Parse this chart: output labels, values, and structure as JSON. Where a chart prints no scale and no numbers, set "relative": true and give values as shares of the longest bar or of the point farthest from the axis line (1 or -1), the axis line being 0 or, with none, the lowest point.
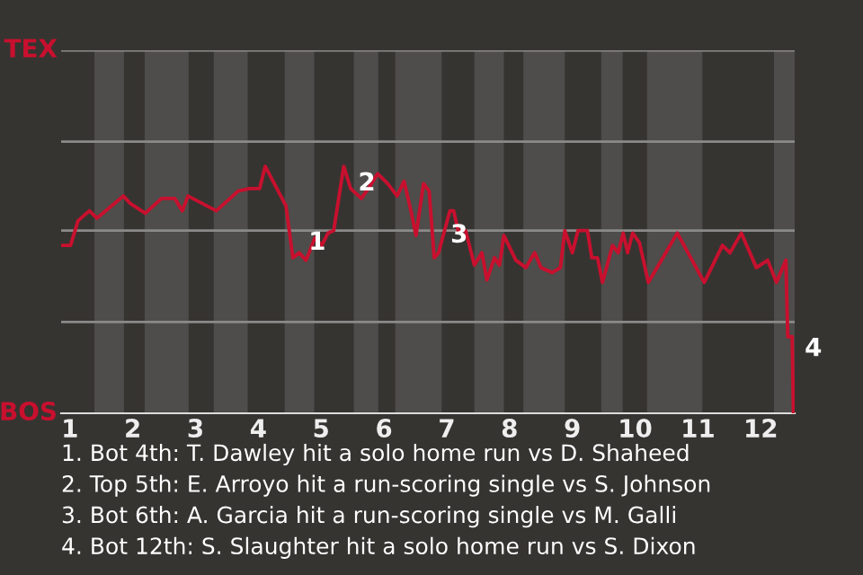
{
  "chart_data": {
    "type": "line",
    "relative": true,
    "xlim": [
      0.86,
      12.54
    ],
    "xticks": [
      1,
      2,
      3,
      4,
      5,
      6,
      7,
      8,
      9,
      10,
      11,
      12
    ],
    "marker": "none",
    "line_style": "solid",
    "series": [
      {
        "color": "#c8102e",
        "x": [
          0.86,
          1.01,
          1.13,
          1.31,
          1.43,
          1.85,
          1.96,
          2.2,
          2.46,
          2.67,
          2.79,
          2.88,
          3.33,
          3.68,
          3.86,
          4.02,
          4.11,
          4.44,
          4.55,
          4.65,
          4.76,
          4.9,
          5.01,
          5.11,
          5.2,
          5.36,
          5.47,
          5.64,
          5.75,
          5.9,
          6.06,
          6.21,
          6.32,
          6.43,
          6.51,
          6.63,
          6.72,
          6.8,
          6.87,
          7.05,
          7.11,
          7.18,
          7.3,
          7.44,
          7.56,
          7.64,
          7.76,
          7.84,
          7.91,
          8.1,
          8.26,
          8.4,
          8.5,
          8.68,
          8.81,
          8.88,
          9.0,
          9.09,
          9.24,
          9.31,
          9.4,
          9.48,
          9.64,
          9.73,
          9.81,
          9.88,
          9.96,
          10.07,
          10.21,
          10.42,
          10.67,
          11.1,
          11.39,
          11.51,
          11.69,
          11.93,
          12.11,
          12.25,
          12.4,
          12.43,
          12.5,
          12.52
        ],
        "values": [
          0.68,
          0.68,
          0.78,
          0.82,
          0.79,
          0.88,
          0.85,
          0.81,
          0.87,
          0.87,
          0.82,
          0.88,
          0.82,
          0.9,
          0.91,
          0.91,
          1,
          0.84,
          0.63,
          0.65,
          0.62,
          0.71,
          0.68,
          0.73,
          0.74,
          1,
          0.91,
          0.87,
          0.91,
          0.97,
          0.93,
          0.88,
          0.94,
          0.82,
          0.72,
          0.93,
          0.9,
          0.63,
          0.65,
          0.82,
          0.82,
          0.74,
          0.74,
          0.6,
          0.65,
          0.54,
          0.63,
          0.6,
          0.72,
          0.62,
          0.59,
          0.65,
          0.59,
          0.57,
          0.59,
          0.74,
          0.65,
          0.74,
          0.74,
          0.63,
          0.63,
          0.53,
          0.68,
          0.65,
          0.73,
          0.65,
          0.73,
          0.69,
          0.53,
          0.62,
          0.73,
          0.53,
          0.68,
          0.65,
          0.73,
          0.59,
          0.62,
          0.53,
          0.62,
          0.31,
          0.31,
          0
        ]
      }
    ],
    "ref_lines": [
      {
        "axis": "y",
        "value": 0.37,
        "color": "#8a8a88"
      },
      {
        "axis": "y",
        "value": 0.74,
        "color": "#8a8a88"
      },
      {
        "axis": "y",
        "value": 1.1,
        "color": "#8a8a88"
      },
      {
        "axis": "y",
        "value": 1.47,
        "color": "#8a8a88"
      }
    ],
    "bands": [
      {
        "axis": "x",
        "from": 1.39,
        "to": 1.86,
        "color": "#4e4d4b"
      },
      {
        "axis": "x",
        "from": 2.19,
        "to": 2.89,
        "color": "#4e4d4b"
      },
      {
        "axis": "x",
        "from": 3.29,
        "to": 3.83,
        "color": "#4e4d4b"
      },
      {
        "axis": "x",
        "from": 4.42,
        "to": 4.89,
        "color": "#4e4d4b"
      },
      {
        "axis": "x",
        "from": 5.52,
        "to": 5.91,
        "color": "#4e4d4b"
      },
      {
        "axis": "x",
        "from": 6.18,
        "to": 6.92,
        "color": "#4e4d4b"
      },
      {
        "axis": "x",
        "from": 7.44,
        "to": 7.91,
        "color": "#4e4d4b"
      },
      {
        "axis": "x",
        "from": 8.22,
        "to": 8.88,
        "color": "#4e4d4b"
      },
      {
        "axis": "x",
        "from": 9.46,
        "to": 9.8,
        "color": "#4e4d4b"
      },
      {
        "axis": "x",
        "from": 10.19,
        "to": 11.07,
        "color": "#4e4d4b"
      },
      {
        "axis": "x",
        "from": 12.21,
        "to": 12.54,
        "color": "#4e4d4b"
      }
    ],
    "annotations": [
      "TEX",
      "BOS",
      {
        "text": "1",
        "x": 4.64,
        "y": 0.69
      },
      {
        "text": "2",
        "x": 5.43,
        "y": 0.93
      },
      {
        "text": "3",
        "x": 6.9,
        "y": 0.72
      },
      {
        "text": "4",
        "x": 12.54,
        "y": 0.26
      },
      "1. Bot 4th: T. Dawley hit a solo home run vs D. Shaheed",
      "2. Top 5th: E. Arroyo hit a run-scoring single vs S. Johnson",
      "3. Bot 6th: A. Garcia hit a run-scoring single vs M. Galli",
      "4. Bot 12th: S. Slaughter hit a solo home run vs S. Dixon"
    ]
  }
}
